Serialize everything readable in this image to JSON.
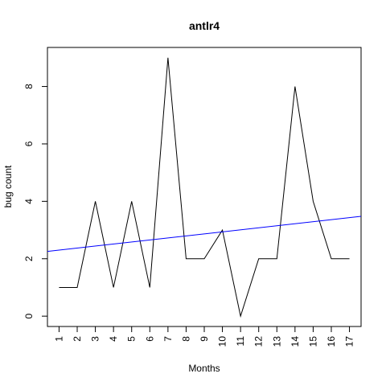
{
  "chart_data": {
    "type": "line",
    "title": "antlr4",
    "xlabel": "Months",
    "ylabel": "bug count",
    "x": [
      1,
      2,
      3,
      4,
      5,
      6,
      7,
      8,
      9,
      10,
      11,
      12,
      13,
      14,
      15,
      16,
      17
    ],
    "series": [
      {
        "values": [
          1,
          1,
          4,
          1,
          4,
          1,
          9,
          2,
          2,
          3,
          0,
          2,
          2,
          8,
          4,
          2,
          2
        ],
        "color": "#000000"
      }
    ],
    "trend_line": {
      "intercept": 2.23,
      "slope": 0.0707,
      "color": "#0000ff"
    },
    "x_ticks": [
      "1",
      "2",
      "3",
      "4",
      "5",
      "6",
      "7",
      "8",
      "9",
      "10",
      "11",
      "12",
      "13",
      "14",
      "15",
      "16",
      "17"
    ],
    "y_ticks": [
      "0",
      "2",
      "4",
      "6",
      "8"
    ],
    "xlim": [
      0.36,
      17.64
    ],
    "ylim": [
      -0.36,
      9.36
    ],
    "grid": false,
    "legend": "none"
  }
}
